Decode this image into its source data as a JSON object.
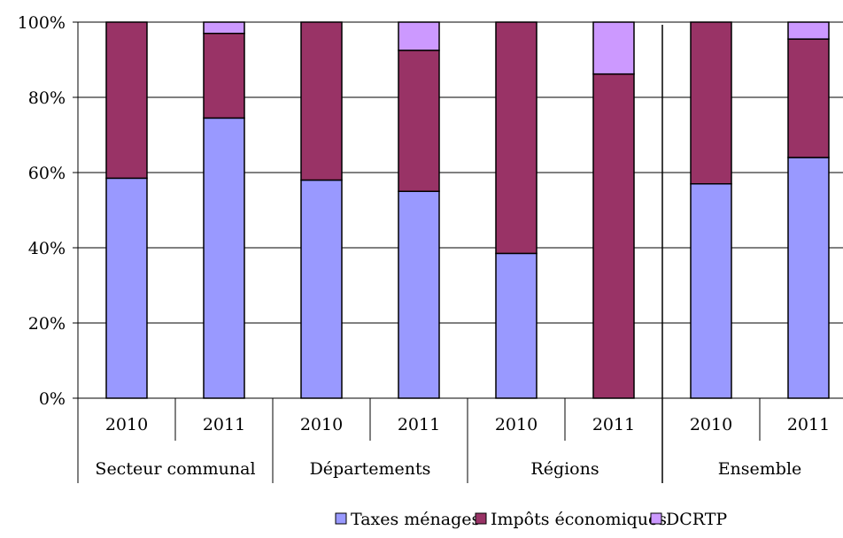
{
  "chart_data": {
    "type": "bar",
    "stacked": "percent",
    "categories": [
      "2010",
      "2011",
      "2010",
      "2011",
      "2010",
      "2011",
      "2010",
      "2011"
    ],
    "groups": [
      "Secteur communal",
      "Départements",
      "Régions",
      "Ensemble"
    ],
    "series": [
      {
        "name": "Taxes ménages",
        "color": "#9999ff",
        "values": [
          58.5,
          74.5,
          58,
          55,
          38.5,
          0,
          57,
          64
        ]
      },
      {
        "name": "Impôts économiques",
        "color": "#993366",
        "values": [
          41.5,
          22.5,
          42,
          37.5,
          61.5,
          86.2,
          43,
          31.5
        ]
      },
      {
        "name": "DCRTP",
        "color": "#cc99ff",
        "values": [
          0,
          3,
          0,
          7.5,
          0,
          13.8,
          0,
          4.5
        ]
      }
    ],
    "y_ticks": [
      "0%",
      "20%",
      "40%",
      "60%",
      "80%",
      "100%"
    ],
    "ylim": [
      0,
      100
    ],
    "grid": true,
    "legend_position": "bottom-center"
  }
}
